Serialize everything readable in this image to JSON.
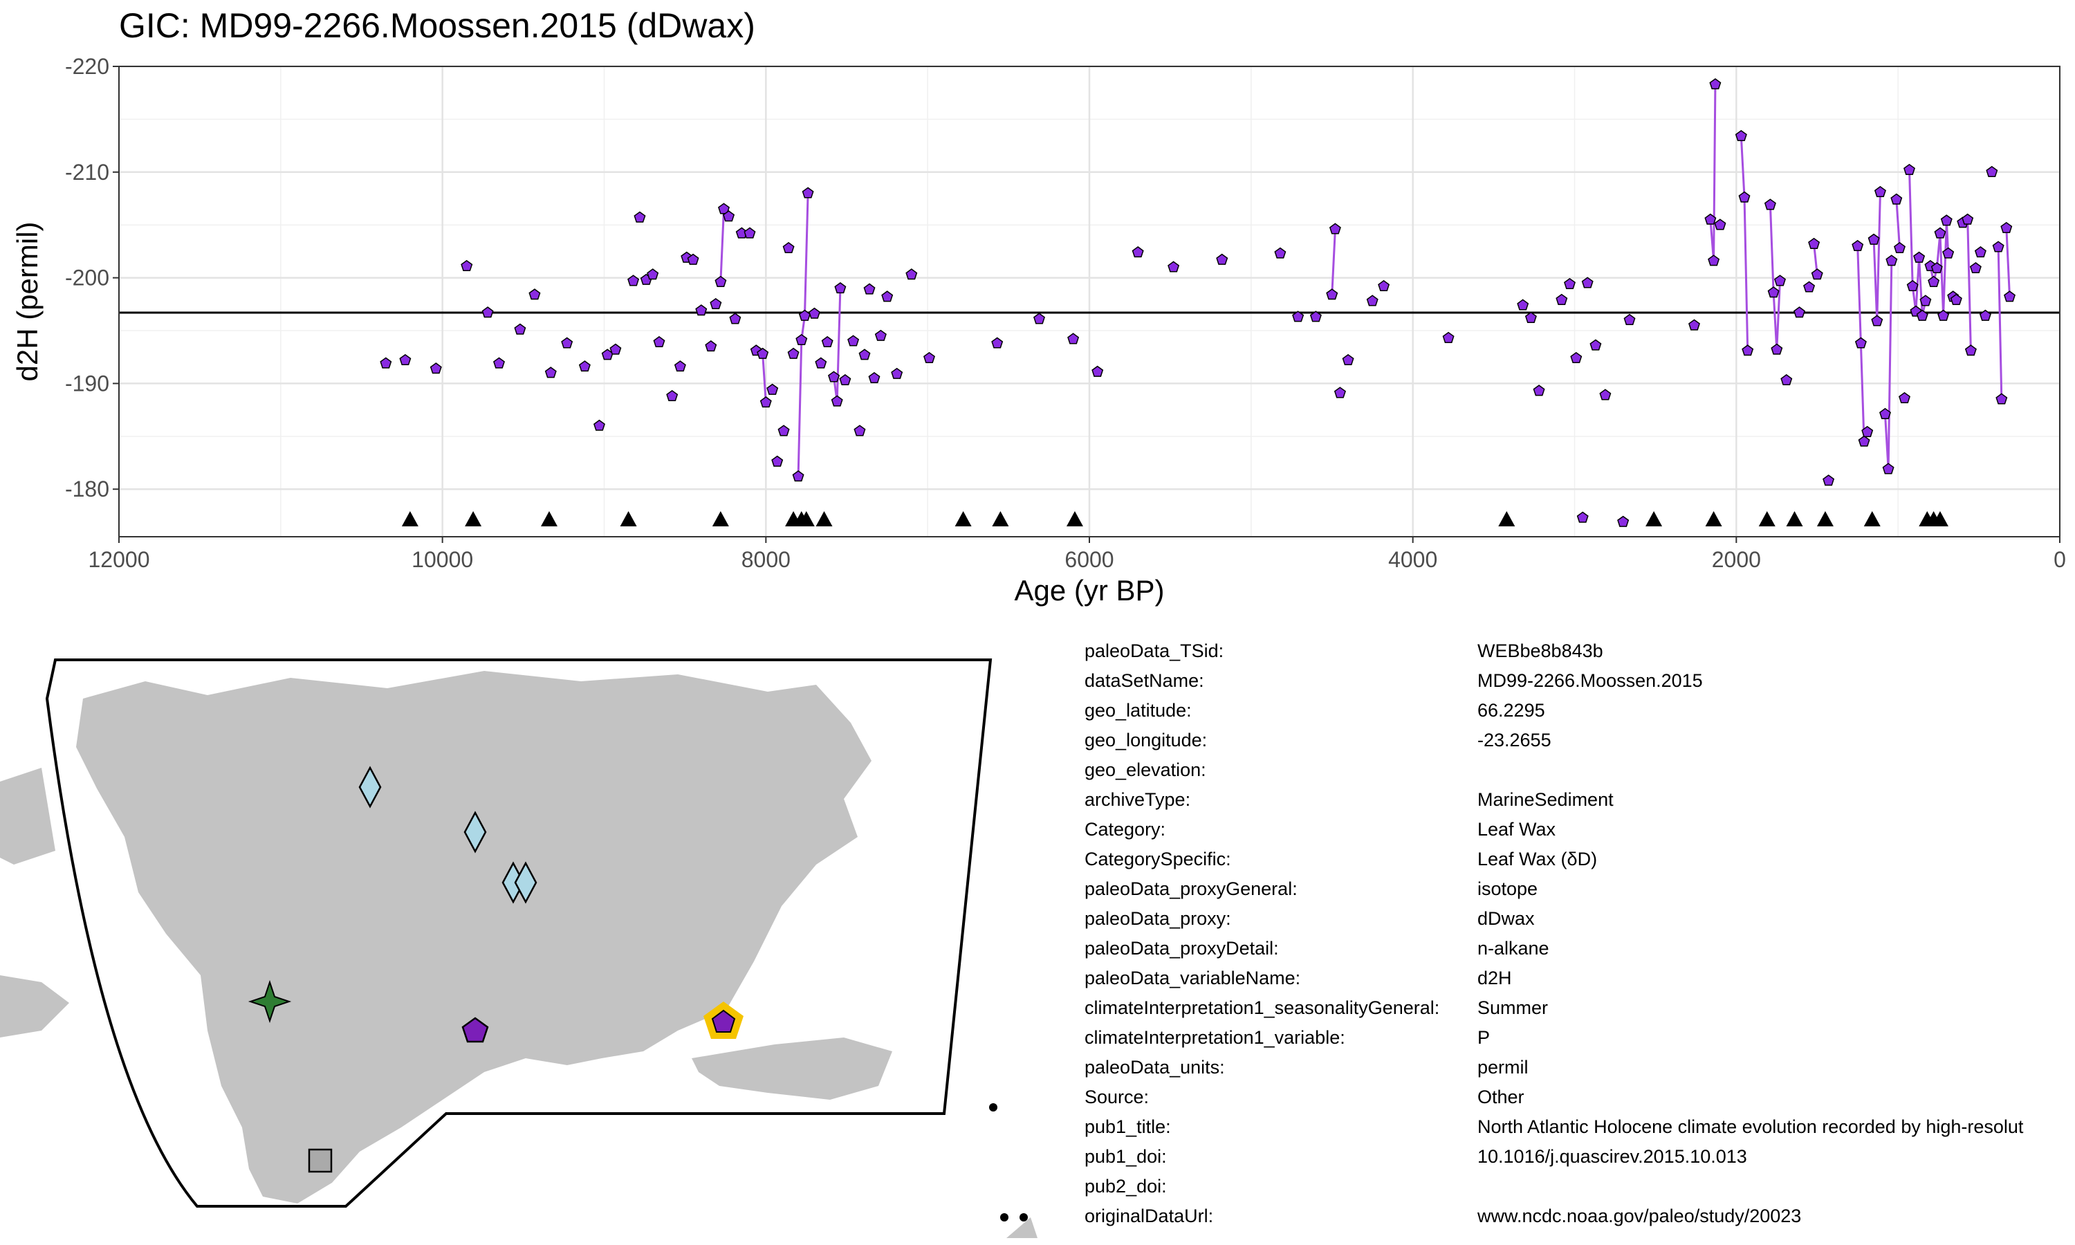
{
  "title": "GIC: MD99-2266.Moossen.2015 (dDwax)",
  "chart_data": {
    "type": "scatter",
    "title": "GIC: MD99-2266.Moossen.2015 (dDwax)",
    "xlabel": "Age (yr BP)",
    "ylabel": "d2H (permil)",
    "x_reversed": true,
    "y_reversed": true,
    "xlim": [
      12000,
      0
    ],
    "ylim": [
      -220,
      -175.5
    ],
    "x_ticks": [
      12000,
      10000,
      8000,
      6000,
      4000,
      2000,
      0
    ],
    "y_ticks": [
      -220,
      -210,
      -200,
      -190,
      -180
    ],
    "x_tick_labels": [
      "12000",
      "10000",
      "8000",
      "6000",
      "4000",
      "2000",
      "0"
    ],
    "y_tick_labels": [
      "-220",
      "-210",
      "-200",
      "-190",
      "-180"
    ],
    "grid": true,
    "mean_line": -196.7,
    "point_color": "#8a2be2",
    "line_color": "#a64ee0",
    "series": [
      {
        "x": [
          10350,
          10230,
          10040,
          9850,
          9720,
          9650,
          9520,
          9430,
          9330,
          9230,
          9120,
          9030,
          8980,
          8930,
          8820,
          8780,
          8740,
          8700,
          8660,
          8580,
          8530,
          8490,
          8450,
          8400,
          8340,
          8310,
          8280,
          8260,
          8230,
          8190,
          8150,
          8100,
          8060,
          8020,
          8000,
          7960,
          7930,
          7890,
          7860,
          7830,
          7800,
          7780,
          7760,
          7740,
          7700,
          7660,
          7620,
          7580,
          7560,
          7540,
          7510,
          7460,
          7420,
          7390,
          7360,
          7330,
          7290,
          7250,
          7190,
          7100,
          6990,
          6570,
          6310,
          6100,
          5950,
          5700,
          5480,
          5180,
          4820,
          4710,
          4600,
          4500,
          4480,
          4450,
          4400,
          4250,
          4180,
          3780,
          3320,
          3270,
          3220,
          3080,
          3030,
          2990,
          2950,
          2920,
          2870,
          2810,
          2700,
          2660,
          2260,
          2160,
          2140,
          2130,
          2100,
          1970,
          1950,
          1930,
          1790,
          1770,
          1750,
          1730,
          1690,
          1610,
          1550,
          1520,
          1500,
          1430,
          1250,
          1230,
          1210,
          1190,
          1150,
          1130,
          1110,
          1080,
          1060,
          1040,
          1010,
          990,
          960,
          930,
          910,
          890,
          870,
          850,
          830,
          800,
          780,
          760,
          740,
          720,
          700,
          690,
          660,
          640,
          600,
          570,
          550,
          520,
          490,
          460,
          420,
          380,
          360,
          330,
          310
        ],
        "y": [
          -191.9,
          -192.2,
          -191.4,
          -201.1,
          -196.7,
          -191.9,
          -195.1,
          -198.4,
          -191.0,
          -193.8,
          -191.6,
          -186.0,
          -192.7,
          -193.2,
          -199.7,
          -205.7,
          -199.8,
          -200.3,
          -193.9,
          -188.8,
          -191.6,
          -201.9,
          -201.7,
          -196.9,
          -193.5,
          -197.5,
          -199.6,
          -206.5,
          -205.8,
          -196.1,
          -204.2,
          -204.2,
          -193.1,
          -192.8,
          -188.2,
          -189.4,
          -182.6,
          -185.5,
          -202.8,
          -192.8,
          -181.2,
          -194.1,
          -196.4,
          -208.0,
          -196.6,
          -191.9,
          -193.9,
          -190.6,
          -188.3,
          -199.0,
          -190.3,
          -194.0,
          -185.5,
          -192.7,
          -198.9,
          -190.5,
          -194.5,
          -198.2,
          -190.9,
          -200.3,
          -192.4,
          -193.8,
          -196.1,
          -194.2,
          -191.1,
          -202.4,
          -201.0,
          -201.7,
          -202.3,
          -196.3,
          -196.3,
          -198.4,
          -204.6,
          -189.1,
          -192.2,
          -197.8,
          -199.2,
          -194.3,
          -197.4,
          -196.2,
          -189.3,
          -197.9,
          -199.4,
          -192.4,
          -177.3,
          -199.5,
          -193.6,
          -188.9,
          -176.9,
          -196.0,
          -195.5,
          -205.5,
          -201.6,
          -218.3,
          -205.0,
          -213.4,
          -207.6,
          -193.1,
          -206.9,
          -198.6,
          -193.2,
          -199.7,
          -190.3,
          -196.7,
          -199.1,
          -203.2,
          -200.3,
          -180.8,
          -203.0,
          -193.8,
          -184.5,
          -185.4,
          -203.6,
          -195.9,
          -208.1,
          -187.1,
          -181.9,
          -201.6,
          -207.4,
          -202.8,
          -188.6,
          -210.2,
          -199.2,
          -196.8,
          -201.9,
          -196.4,
          -197.8,
          -201.1,
          -199.6,
          -200.9,
          -204.2,
          -196.4,
          -205.4,
          -202.3,
          -198.2,
          -197.9,
          -205.2,
          -205.5,
          -193.1,
          -200.9,
          -202.4,
          -196.4,
          -210.0,
          -202.9,
          -188.5,
          -204.7,
          -198.2
        ]
      }
    ],
    "age_control_x": [
      10200,
      9810,
      9340,
      8850,
      8280,
      7830,
      7780,
      7750,
      7640,
      6780,
      6550,
      6090,
      3420,
      2510,
      2140,
      1810,
      1640,
      1450,
      1160,
      820,
      780,
      740
    ],
    "age_control_y": -177.2
  },
  "metadata": [
    {
      "key": "paleoData_TSid:",
      "value": "WEBbe8b843b"
    },
    {
      "key": "dataSetName:",
      "value": "MD99-2266.Moossen.2015"
    },
    {
      "key": "geo_latitude:",
      "value": "66.2295"
    },
    {
      "key": "geo_longitude:",
      "value": "-23.2655"
    },
    {
      "key": "geo_elevation:",
      "value": ""
    },
    {
      "key": "archiveType:",
      "value": "MarineSediment"
    },
    {
      "key": "Category:",
      "value": "Leaf Wax"
    },
    {
      "key": "CategorySpecific:",
      "value": "Leaf Wax (δD)"
    },
    {
      "key": "paleoData_proxyGeneral:",
      "value": "isotope"
    },
    {
      "key": "paleoData_proxy:",
      "value": "dDwax"
    },
    {
      "key": "paleoData_proxyDetail:",
      "value": "n-alkane"
    },
    {
      "key": "paleoData_variableName:",
      "value": "d2H"
    },
    {
      "key": "climateInterpretation1_seasonalityGeneral:",
      "value": "Summer"
    },
    {
      "key": "climateInterpretation1_variable:",
      "value": "P"
    },
    {
      "key": "paleoData_units:",
      "value": "permil"
    },
    {
      "key": "Source:",
      "value": "Other"
    },
    {
      "key": "pub1_title:",
      "value": "North Atlantic Holocene climate evolution recorded by high-resolut"
    },
    {
      "key": "pub1_doi:",
      "value": "10.1016/j.quascirev.2015.10.013"
    },
    {
      "key": "pub2_doi:",
      "value": ""
    },
    {
      "key": "originalDataUrl:",
      "value": "www.ncdc.noaa.gov/paleo/study/20023"
    }
  ],
  "map": {
    "land_color": "#c3c3c3",
    "marker_colors": {
      "diamond": "#add8e6",
      "star": "#2e7d32",
      "pentagon": "#7b1fb8",
      "highlight": "#f5c400",
      "square": "#aaaaaa"
    }
  }
}
